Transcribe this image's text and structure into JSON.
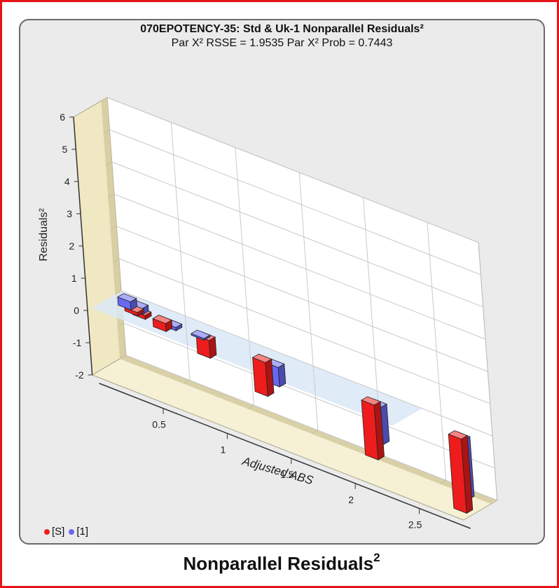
{
  "caption": {
    "text": "Nonparallel Residuals",
    "sup": "2"
  },
  "chart_data": {
    "type": "bar",
    "title": "070EPOTENCY-35: Std & Uk-1  Nonparallel Residuals²",
    "subtitle": "Par X² RSSE = 1.9535 Par X² Prob = 0.7443",
    "xlabel": "Adjusted ABS",
    "ylabel": "Residuals²",
    "xlim": [
      0.0,
      2.9
    ],
    "ylim": [
      -2,
      6
    ],
    "x_ticks": [
      "0.5",
      "1",
      "1.5",
      "2",
      "2.5"
    ],
    "y_ticks": [
      "-2",
      "-1",
      "0",
      "1",
      "2",
      "3",
      "4",
      "5",
      "6"
    ],
    "grid": true,
    "legend_position": "bottom-left",
    "series": [
      {
        "name": "[S]",
        "color": "#ee1c1c",
        "points": [
          {
            "x": 0.2,
            "y": -0.1
          },
          {
            "x": 0.26,
            "y": -0.12
          },
          {
            "x": 0.42,
            "y": -0.25
          },
          {
            "x": 0.76,
            "y": -0.55
          },
          {
            "x": 1.2,
            "y": -1.05
          },
          {
            "x": 2.05,
            "y": -1.7
          },
          {
            "x": 2.73,
            "y": -2.3
          }
        ]
      },
      {
        "name": "[1]",
        "color": "#6868f2",
        "points": [
          {
            "x": 0.15,
            "y": 0.25
          },
          {
            "x": 0.24,
            "y": 0.18
          },
          {
            "x": 0.5,
            "y": -0.1
          },
          {
            "x": 0.72,
            "y": -0.05
          },
          {
            "x": 1.3,
            "y": -0.6
          },
          {
            "x": 2.1,
            "y": -1.15
          },
          {
            "x": 2.75,
            "y": -1.85
          }
        ]
      }
    ]
  }
}
